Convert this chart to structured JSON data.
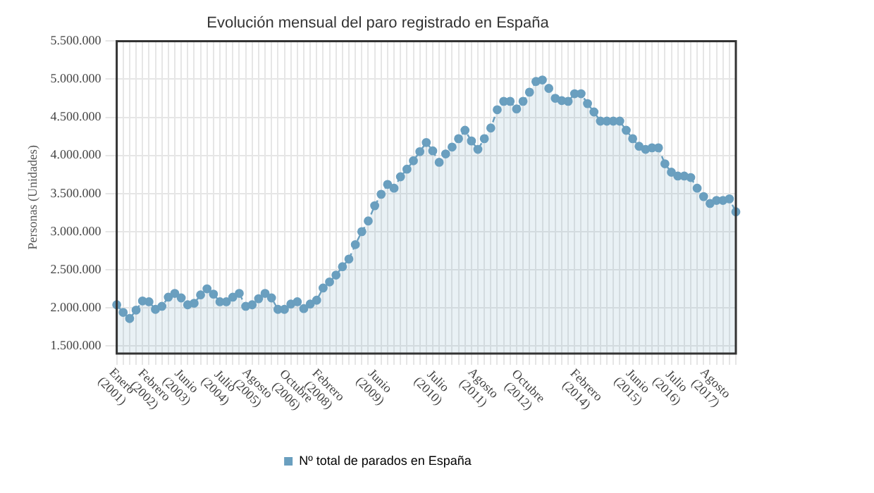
{
  "chart_data": {
    "type": "area",
    "title": "Evolución mensual del paro registrado en España",
    "ylabel": "Personas (Unidades)",
    "categories": [
      "Enero (2001)",
      null,
      null,
      null,
      null,
      "Febrero (2002)",
      null,
      null,
      null,
      null,
      "Junio (2003)",
      null,
      null,
      null,
      null,
      null,
      "Julio (2004)",
      null,
      null,
      null,
      null,
      "Agosto (2005)",
      null,
      null,
      null,
      null,
      null,
      "Octubre (2006)",
      null,
      null,
      null,
      null,
      "Febrero (2008)",
      null,
      null,
      null,
      null,
      null,
      null,
      null,
      "Junio (2009)",
      null,
      null,
      null,
      null,
      null,
      null,
      null,
      null,
      "Julio (2010)",
      null,
      null,
      null,
      null,
      null,
      null,
      "Agosto (2011)",
      null,
      null,
      null,
      null,
      null,
      null,
      "Octubre (2012)",
      null,
      null,
      null,
      null,
      null,
      null,
      null,
      null,
      "Febrero (2014)",
      null,
      null,
      null,
      null,
      null,
      null,
      null,
      "Junio (2015)",
      null,
      null,
      null,
      null,
      null,
      "Julio (2016)",
      null,
      null,
      null,
      null,
      null,
      "Agosto (2017)",
      null,
      null,
      null,
      null
    ],
    "series": [
      {
        "name": "Nº total de parados en España",
        "color": "#6a9fbf",
        "values": [
          2040000,
          1940000,
          1860000,
          1970000,
          2090000,
          2080000,
          1980000,
          2020000,
          2140000,
          2190000,
          2130000,
          2040000,
          2060000,
          2170000,
          2250000,
          2180000,
          2080000,
          2080000,
          2140000,
          2190000,
          2020000,
          2040000,
          2120000,
          2190000,
          2130000,
          1980000,
          1980000,
          2050000,
          2080000,
          1990000,
          2050000,
          2100000,
          2260000,
          2340000,
          2430000,
          2540000,
          2640000,
          2830000,
          3000000,
          3140000,
          3340000,
          3490000,
          3620000,
          3570000,
          3720000,
          3820000,
          3930000,
          4050000,
          4170000,
          4060000,
          3910000,
          4020000,
          4110000,
          4220000,
          4330000,
          4190000,
          4080000,
          4220000,
          4360000,
          4600000,
          4710000,
          4710000,
          4610000,
          4710000,
          4830000,
          4970000,
          4990000,
          4880000,
          4750000,
          4720000,
          4710000,
          4810000,
          4810000,
          4680000,
          4570000,
          4450000,
          4450000,
          4450000,
          4450000,
          4330000,
          4220000,
          4120000,
          4080000,
          4100000,
          4100000,
          3890000,
          3780000,
          3730000,
          3730000,
          3710000,
          3570000,
          3460000,
          3370000,
          3410000,
          3410000,
          3430000,
          3260000
        ]
      }
    ],
    "ylim": [
      1400000,
      5500000
    ],
    "yticks": [
      {
        "value": 1500000,
        "label": "1.500.000"
      },
      {
        "value": 2000000,
        "label": "2.000.000"
      },
      {
        "value": 2500000,
        "label": "2.500.000"
      },
      {
        "value": 3000000,
        "label": "3.000.000"
      },
      {
        "value": 3500000,
        "label": "3.500.000"
      },
      {
        "value": 4000000,
        "label": "4.000.000"
      },
      {
        "value": 4500000,
        "label": "4.500.000"
      },
      {
        "value": 5000000,
        "label": "5.000.000"
      },
      {
        "value": 5500000,
        "label": "5.500.000"
      }
    ],
    "grid": true,
    "legend": "bottom",
    "marker": "circle",
    "line_style": "dashed"
  }
}
